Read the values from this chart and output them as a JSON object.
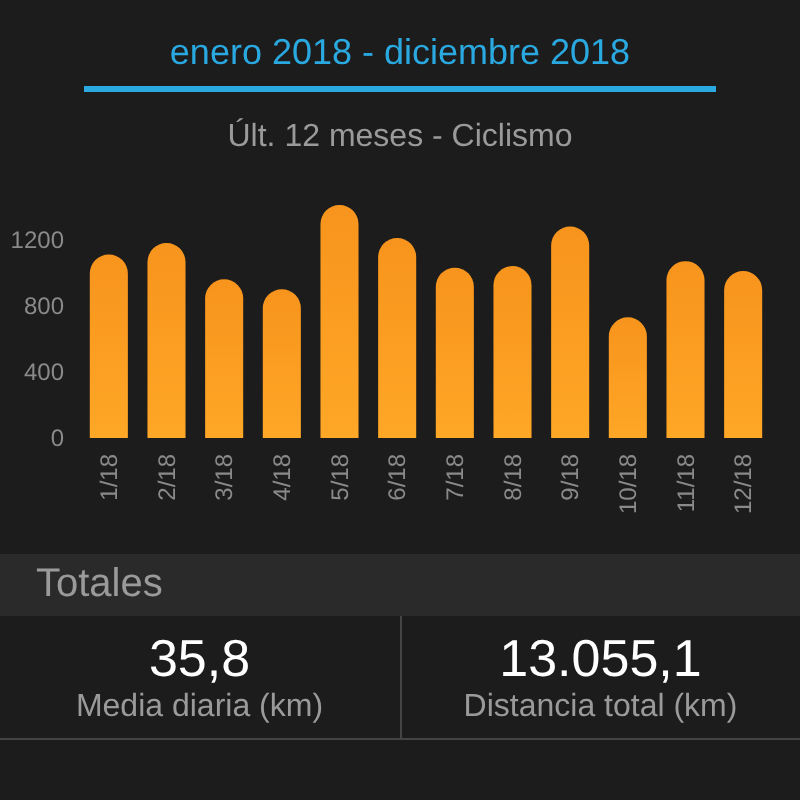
{
  "chart_data": {
    "type": "bar",
    "title": "enero 2018 - diciembre 2018",
    "subtitle": "Últ. 12 meses - Ciclismo",
    "categories": [
      "1/18",
      "2/18",
      "3/18",
      "4/18",
      "5/18",
      "6/18",
      "7/18",
      "8/18",
      "9/18",
      "10/18",
      "11/18",
      "12/18"
    ],
    "values": [
      1110,
      1180,
      960,
      900,
      1410,
      1210,
      1030,
      1040,
      1280,
      730,
      1070,
      1010
    ],
    "color": "#f7941d",
    "ylim": [
      0,
      1440
    ],
    "yticks": [
      0,
      400,
      800,
      1200
    ],
    "grid": false,
    "annotations": [
      "Totales",
      "35,8",
      "Media diaria (km)",
      "13.055,1",
      "Distancia total (km)"
    ]
  }
}
